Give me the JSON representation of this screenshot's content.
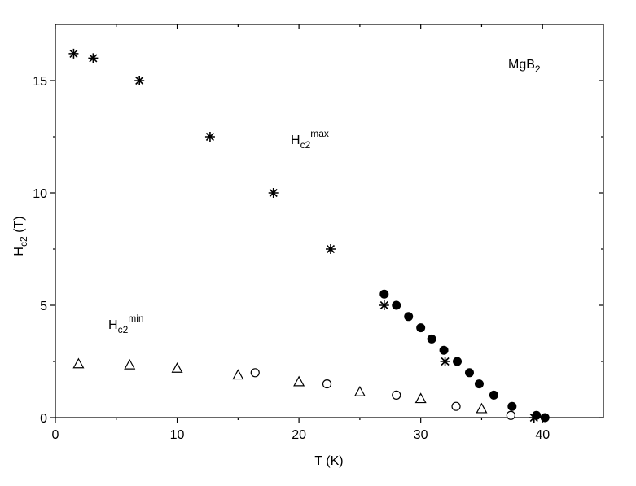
{
  "chart_data": {
    "type": "scatter",
    "xlabel": "T (K)",
    "ylabel": {
      "text": "H",
      "sub": "c2",
      "suffix": " (T)"
    },
    "xlim": [
      0,
      45
    ],
    "ylim": [
      0,
      17.5
    ],
    "xticks": [
      0,
      10,
      20,
      30,
      40
    ],
    "yticks": [
      0,
      5,
      10,
      15
    ],
    "xminorticks": [
      5,
      15,
      25,
      35
    ],
    "yminorticks": [
      2.5,
      7.5,
      12.5
    ],
    "series": [
      {
        "marker": "asterisk",
        "color": "#000000",
        "x": [
          1.5,
          3.1,
          6.9,
          12.7,
          17.9,
          22.6,
          27.0,
          32.0,
          39.3
        ],
        "y": [
          16.2,
          16.0,
          15.0,
          12.5,
          10.0,
          7.5,
          5.0,
          2.5,
          0.0
        ]
      },
      {
        "marker": "filled-circle",
        "color": "#000000",
        "x": [
          27.0,
          28.0,
          29.0,
          30.0,
          30.9,
          31.9,
          33.0,
          34.0,
          34.8,
          36.0,
          37.5,
          39.5,
          40.2
        ],
        "y": [
          5.5,
          5.0,
          4.5,
          4.0,
          3.5,
          3.0,
          2.5,
          2.0,
          1.5,
          1.0,
          0.5,
          0.1,
          0.0
        ]
      },
      {
        "marker": "open-circle",
        "color": "#000000",
        "x": [
          16.4,
          22.3,
          28.0,
          32.9,
          37.4
        ],
        "y": [
          2.0,
          1.5,
          1.0,
          0.5,
          0.1
        ]
      },
      {
        "marker": "open-triangle",
        "color": "#000000",
        "x": [
          1.9,
          6.1,
          10.0,
          15.0,
          20.0,
          25.0,
          30.0,
          35.0
        ],
        "y": [
          2.4,
          2.35,
          2.2,
          1.9,
          1.6,
          1.15,
          0.85,
          0.4
        ]
      }
    ],
    "annotations": [
      {
        "text": "MgB",
        "sub": "2"
      },
      {
        "text": "H",
        "sub": "c2",
        "sup": "max"
      },
      {
        "text": "H",
        "sub": "c2",
        "sup": "min"
      }
    ]
  }
}
